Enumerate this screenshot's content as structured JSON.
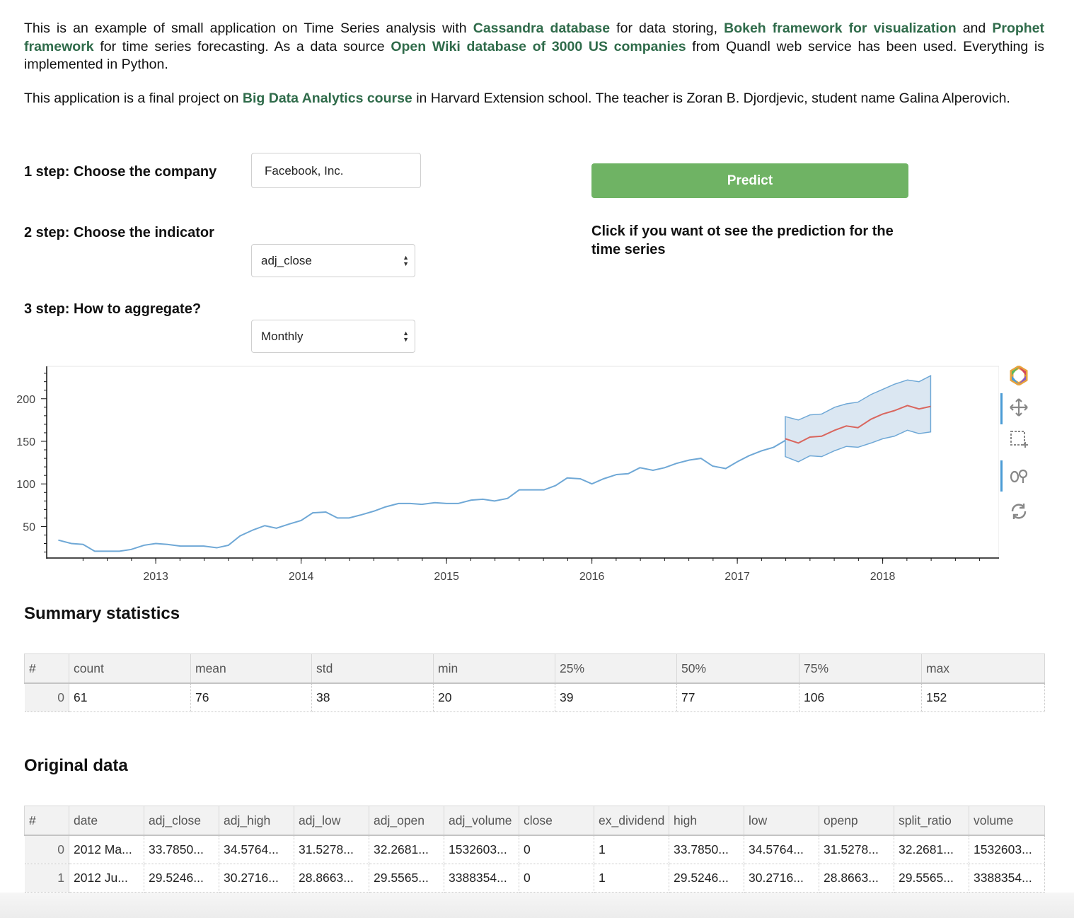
{
  "intro": {
    "p1": [
      {
        "t": "This is an example of small application on Time Series analysis with "
      },
      {
        "t": "Cassandra database",
        "link": true
      },
      {
        "t": " for data storing, "
      },
      {
        "t": "Bokeh framework for visualization",
        "link": true
      },
      {
        "t": " and "
      },
      {
        "t": "Prophet framework",
        "link": true
      },
      {
        "t": " for time series forecasting. As a data source "
      },
      {
        "t": "Open Wiki database of 3000 US companies",
        "link": true
      },
      {
        "t": " from Quandl web service has been used. Everything is implemented in Python."
      }
    ],
    "p2": [
      {
        "t": "This application is a final project on "
      },
      {
        "t": "Big Data Analytics course",
        "link": true
      },
      {
        "t": " in Harvard Extension school. The teacher is Zoran B. Djordjevic, student name Galina Alperovich."
      }
    ]
  },
  "steps": {
    "step1_label": "1 step: Choose the company",
    "company_value": "Facebook, Inc.",
    "step2_label": "2 step: Choose the indicator",
    "indicator_value": "adj_close",
    "step3_label": "3 step: How to aggregate?",
    "aggregate_value": "Monthly"
  },
  "predict": {
    "button_label": "Predict",
    "hint": "Click if you want ot see the prediction for the time series"
  },
  "toolbar": {
    "icons": [
      "bokeh-logo-icon",
      "pan-icon",
      "box-zoom-icon",
      "wheel-zoom-icon",
      "reset-icon"
    ]
  },
  "chart_data": {
    "type": "line",
    "title": "",
    "xlabel": "",
    "ylabel": "",
    "x_ticks": [
      "2013",
      "2014",
      "2015",
      "2016",
      "2017",
      "2018"
    ],
    "y_ticks": [
      50,
      100,
      150,
      200
    ],
    "xlim": [
      2012.25,
      2018.8
    ],
    "ylim": [
      13,
      238
    ],
    "grid": false,
    "colors": {
      "history": "#6fa8d6",
      "forecast": "#d9665e",
      "band_fill": "#dbe7f2",
      "band_stroke": "#6fa8d6"
    },
    "series": [
      {
        "values": [
          [
            2012.33,
            34
          ],
          [
            2012.42,
            30
          ],
          [
            2012.5,
            29
          ],
          [
            2012.58,
            21
          ],
          [
            2012.67,
            21
          ],
          [
            2012.75,
            21
          ],
          [
            2012.83,
            23
          ],
          [
            2012.92,
            28
          ],
          [
            2013.0,
            30
          ],
          [
            2013.08,
            29
          ],
          [
            2013.17,
            27
          ],
          [
            2013.25,
            27
          ],
          [
            2013.33,
            27
          ],
          [
            2013.42,
            25
          ],
          [
            2013.5,
            28
          ],
          [
            2013.58,
            39
          ],
          [
            2013.67,
            46
          ],
          [
            2013.75,
            51
          ],
          [
            2013.83,
            48
          ],
          [
            2013.92,
            53
          ],
          [
            2014.0,
            57
          ],
          [
            2014.08,
            66
          ],
          [
            2014.17,
            67
          ],
          [
            2014.25,
            60
          ],
          [
            2014.33,
            60
          ],
          [
            2014.42,
            64
          ],
          [
            2014.5,
            68
          ],
          [
            2014.58,
            73
          ],
          [
            2014.67,
            77
          ],
          [
            2014.75,
            77
          ],
          [
            2014.83,
            76
          ],
          [
            2014.92,
            78
          ],
          [
            2015.0,
            77
          ],
          [
            2015.08,
            77
          ],
          [
            2015.17,
            81
          ],
          [
            2015.25,
            82
          ],
          [
            2015.33,
            80
          ],
          [
            2015.42,
            83
          ],
          [
            2015.5,
            93
          ],
          [
            2015.58,
            93
          ],
          [
            2015.67,
            93
          ],
          [
            2015.75,
            98
          ],
          [
            2015.83,
            107
          ],
          [
            2015.92,
            106
          ],
          [
            2016.0,
            100
          ],
          [
            2016.08,
            106
          ],
          [
            2016.17,
            111
          ],
          [
            2016.25,
            112
          ],
          [
            2016.33,
            119
          ],
          [
            2016.42,
            116
          ],
          [
            2016.5,
            119
          ],
          [
            2016.58,
            124
          ],
          [
            2016.67,
            128
          ],
          [
            2016.75,
            130
          ],
          [
            2016.83,
            121
          ],
          [
            2016.92,
            118
          ],
          [
            2017.0,
            126
          ],
          [
            2017.08,
            133
          ],
          [
            2017.17,
            139
          ],
          [
            2017.25,
            143
          ],
          [
            2017.33,
            151
          ]
        ]
      },
      {
        "values": [
          [
            2017.33,
            153
          ],
          [
            2017.42,
            148
          ],
          [
            2017.5,
            155
          ],
          [
            2017.58,
            156
          ],
          [
            2017.67,
            163
          ],
          [
            2017.75,
            168
          ],
          [
            2017.83,
            166
          ],
          [
            2017.92,
            176
          ],
          [
            2018.0,
            182
          ],
          [
            2018.08,
            186
          ],
          [
            2018.17,
            192
          ],
          [
            2018.25,
            188
          ],
          [
            2018.33,
            191
          ]
        ]
      }
    ],
    "interval_upper": [
      [
        2017.33,
        179
      ],
      [
        2017.42,
        175
      ],
      [
        2017.5,
        181
      ],
      [
        2017.58,
        182
      ],
      [
        2017.67,
        190
      ],
      [
        2017.75,
        194
      ],
      [
        2017.83,
        196
      ],
      [
        2017.92,
        205
      ],
      [
        2018.0,
        211
      ],
      [
        2018.08,
        217
      ],
      [
        2018.17,
        222
      ],
      [
        2018.25,
        220
      ],
      [
        2018.33,
        227
      ]
    ],
    "interval_lower": [
      [
        2017.33,
        132
      ],
      [
        2017.42,
        126
      ],
      [
        2017.5,
        133
      ],
      [
        2017.58,
        132
      ],
      [
        2017.67,
        139
      ],
      [
        2017.75,
        144
      ],
      [
        2017.83,
        143
      ],
      [
        2017.92,
        148
      ],
      [
        2018.0,
        153
      ],
      [
        2018.08,
        156
      ],
      [
        2018.17,
        163
      ],
      [
        2018.25,
        159
      ],
      [
        2018.33,
        161
      ]
    ]
  },
  "summary": {
    "title": "Summary statistics",
    "columns": [
      "#",
      "count",
      "mean",
      "std",
      "min",
      "25%",
      "50%",
      "75%",
      "max"
    ],
    "rows": [
      [
        "0",
        "61",
        "76",
        "38",
        "20",
        "39",
        "77",
        "106",
        "152"
      ]
    ]
  },
  "original": {
    "title": "Original data",
    "columns": [
      "#",
      "date",
      "adj_close",
      "adj_high",
      "adj_low",
      "adj_open",
      "adj_volume",
      "close",
      "ex_dividend",
      "high",
      "low",
      "openp",
      "split_ratio",
      "volume"
    ],
    "rows": [
      [
        "0",
        "2012 Ma...",
        "33.7850...",
        "34.5764...",
        "31.5278...",
        "32.2681...",
        "1532603...",
        "0",
        "1",
        "33.7850...",
        "34.5764...",
        "31.5278...",
        "32.2681...",
        "1532603..."
      ],
      [
        "1",
        "2012 Ju...",
        "29.5246...",
        "30.2716...",
        "28.8663...",
        "29.5565...",
        "3388354...",
        "0",
        "1",
        "29.5246...",
        "30.2716...",
        "28.8663...",
        "29.5565...",
        "3388354..."
      ]
    ]
  }
}
